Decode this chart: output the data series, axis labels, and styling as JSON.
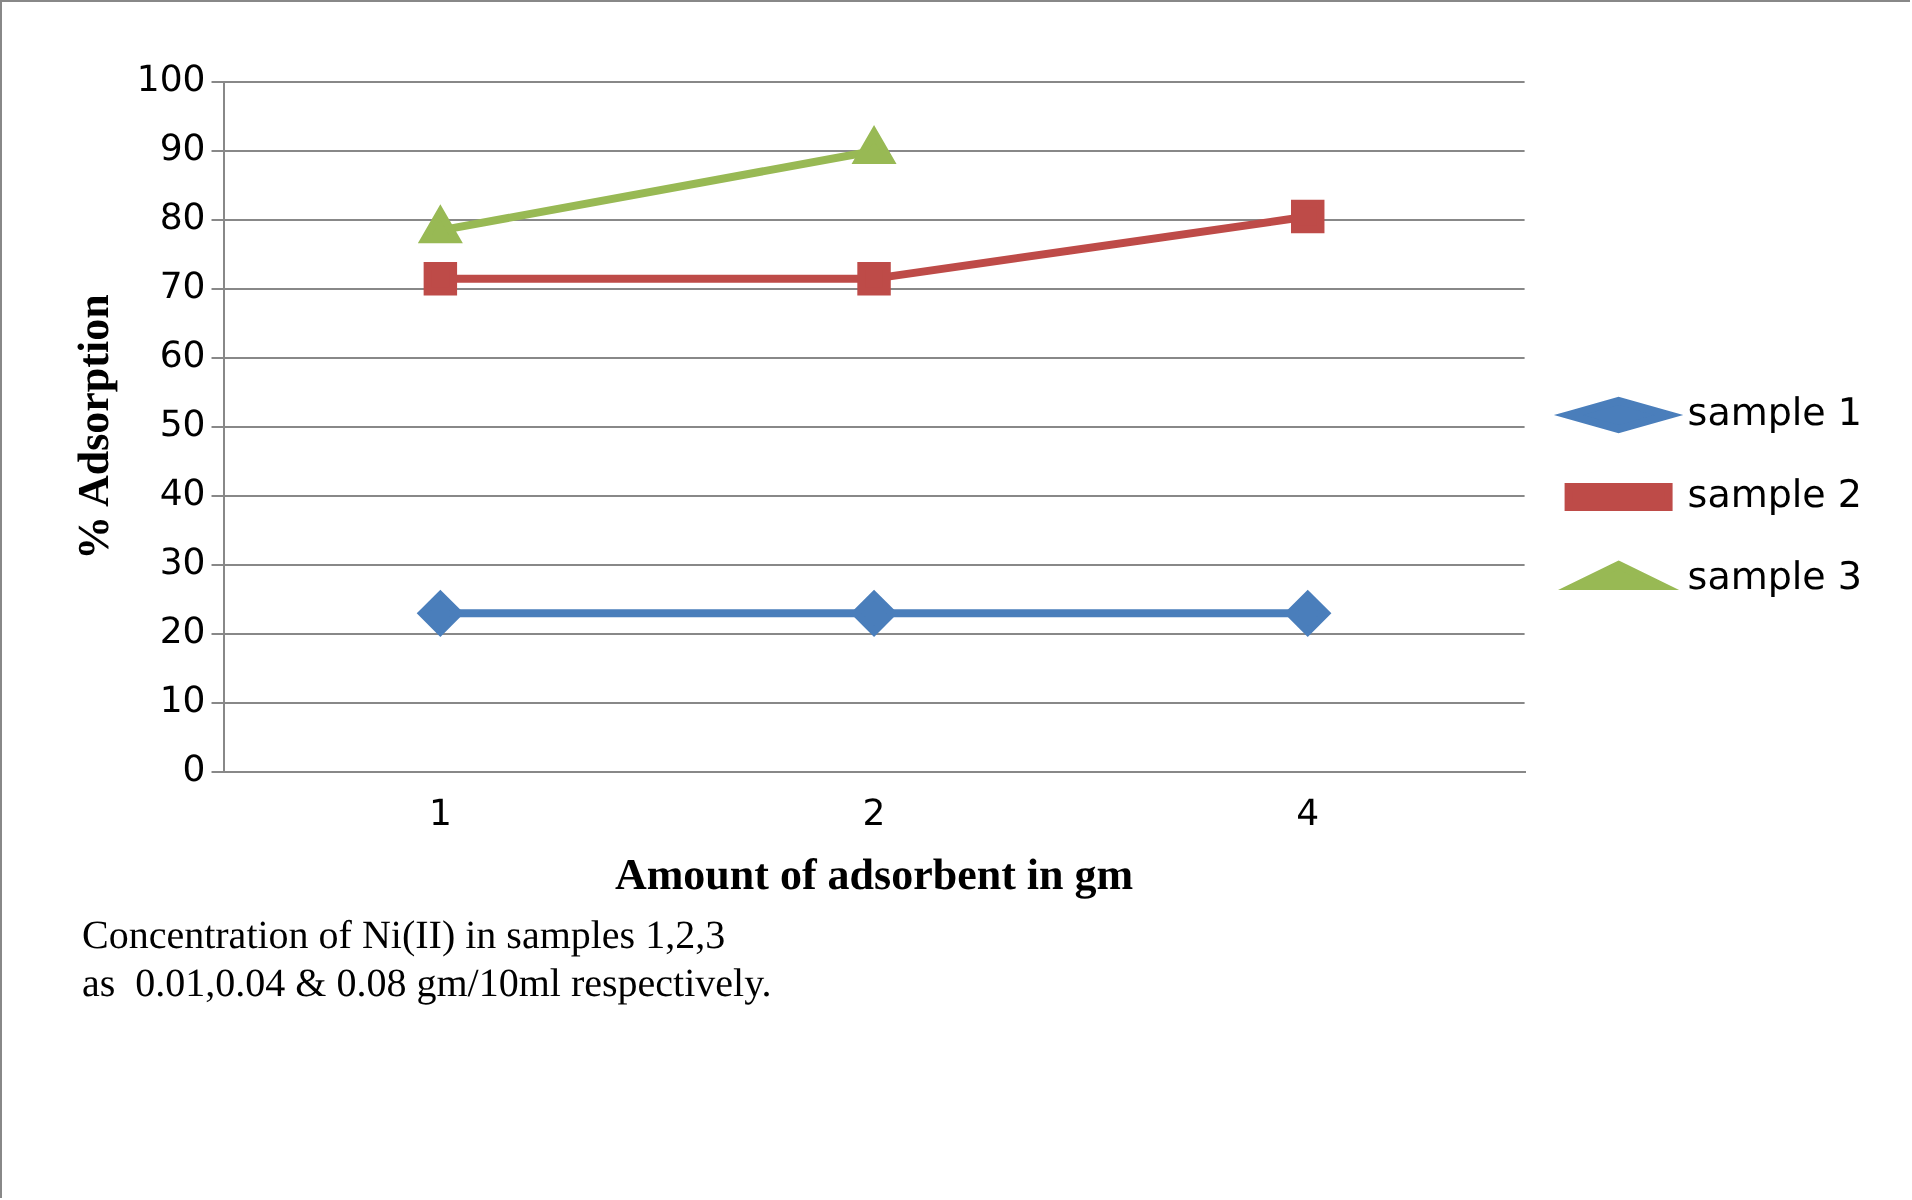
{
  "chart_data": {
    "type": "line",
    "xlabel": "Amount of adsorbent in gm",
    "ylabel": "% Adsorption",
    "categories": [
      "1",
      "2",
      "4"
    ],
    "series": [
      {
        "name": "sample 1",
        "color": "#4a7ebb",
        "marker": "diamond",
        "values": [
          23,
          23,
          23
        ]
      },
      {
        "name": "sample 2",
        "color": "#be4b48",
        "marker": "square",
        "values": [
          71.5,
          71.5,
          80.5
        ]
      },
      {
        "name": "sample 3",
        "color": "#98b954",
        "marker": "triangle",
        "values": [
          78.5,
          90,
          null
        ]
      }
    ],
    "ylim": [
      0,
      100
    ],
    "yticks": [
      0,
      10,
      20,
      30,
      40,
      50,
      60,
      70,
      80,
      90,
      100
    ],
    "grid": "y",
    "legend": "right",
    "line_style": "solid",
    "annotations": [
      "Concentration of Ni(II) in samples 1,2,3\nas  0.01,0.04 & 0.08 gm/10ml respectively."
    ]
  }
}
